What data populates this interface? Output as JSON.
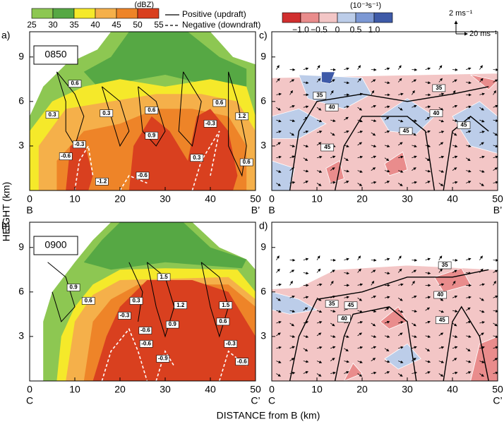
{
  "chart_data": {
    "type": "cross-section",
    "reflectivity_colorbar": {
      "unit": "(dBZ)",
      "ticks": [
        25,
        30,
        35,
        40,
        45,
        50,
        55
      ],
      "colors": [
        "#8dc752",
        "#56a844",
        "#f5e92a",
        "#f5b04a",
        "#ee8428",
        "#d9401f"
      ]
    },
    "legend": {
      "positive": "Positive (updraft)",
      "negative": "Negative (downdraft)"
    },
    "vorticity_colorbar": {
      "unit": "(10⁻³s⁻¹)",
      "ticks": [
        "−1.0",
        "−0.5",
        "0",
        "0.5",
        "1.0"
      ],
      "colors": [
        "#d12f2f",
        "#e98c8c",
        "#f3c6c6",
        "#bccde9",
        "#7c98d4",
        "#3e5aa8"
      ]
    },
    "reference_vector": {
      "vertical": "2 ms⁻¹",
      "horizontal": "20 ms⁻¹"
    },
    "y_axis_label": "HEIGHT (km)",
    "x_axis_label": "DISTANCE from B (km)",
    "panels": [
      {
        "label": "a)",
        "time": "0850",
        "start": "B",
        "end": "B’",
        "xlim": [
          0,
          50
        ],
        "ylim": [
          0,
          10.7
        ],
        "xticks": [
          0,
          10,
          20,
          30,
          40,
          50
        ],
        "yticks": [
          3,
          6,
          9
        ],
        "contour_labels": [
          "0.6",
          "0.3",
          "0.3",
          "0.6",
          "0.9",
          "0.3",
          "-0.3",
          "0.6",
          "1.2",
          "0.6",
          "-0.3",
          "-0.6",
          "-0.6",
          "-1.2"
        ]
      },
      {
        "label": "b)",
        "time": "0900",
        "start": "C",
        "end": "C’",
        "xlim": [
          0,
          50
        ],
        "ylim": [
          0,
          10.7
        ],
        "xticks": [
          0,
          10,
          20,
          30,
          40,
          50
        ],
        "yticks": [
          3,
          6,
          9
        ],
        "contour_labels": [
          "0.9",
          "0.6",
          "0.3",
          "-0.3",
          "1.5",
          "1.2",
          "0.9",
          "1.5",
          "0.6",
          "-0.6",
          "-0.6",
          "-0.9",
          "-0.3",
          "-0.6"
        ]
      },
      {
        "label": "c)",
        "start": "B",
        "end": "B’",
        "xlim": [
          0,
          50
        ],
        "ylim": [
          0,
          10.7
        ],
        "xticks": [
          0,
          10,
          20,
          30,
          40,
          50
        ],
        "yticks": [
          3,
          6,
          9
        ],
        "contour_labels": [
          "35",
          "35",
          "40",
          "40",
          "45",
          "45",
          "45"
        ]
      },
      {
        "label": "d)",
        "start": "C",
        "end": "C’",
        "xlim": [
          0,
          50
        ],
        "ylim": [
          0,
          10.7
        ],
        "xticks": [
          0,
          10,
          20,
          30,
          40,
          50
        ],
        "yticks": [
          3,
          6,
          9
        ],
        "contour_labels": [
          "35",
          "40",
          "45",
          "40",
          "35",
          "45"
        ]
      }
    ]
  }
}
